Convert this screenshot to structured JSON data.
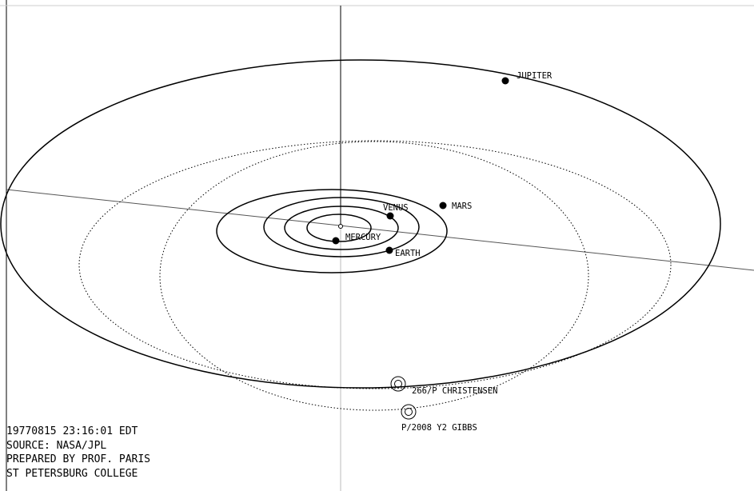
{
  "planets": [
    {
      "name": "MERCURY"
    },
    {
      "name": "VENUS"
    },
    {
      "name": "EARTH"
    },
    {
      "name": "MARS"
    },
    {
      "name": "JUPITER"
    }
  ],
  "comets": [
    {
      "name": "266/P CHRISTENSEN"
    },
    {
      "name": "P/2008 Y2 GIBBS"
    }
  ],
  "caption": {
    "datetime": "19770815 23:16:01 EDT",
    "source": "SOURCE: NASA/JPL",
    "prepared_by": "PREPARED BY PROF. PARIS",
    "institution": "ST PETERSBURG COLLEGE"
  }
}
